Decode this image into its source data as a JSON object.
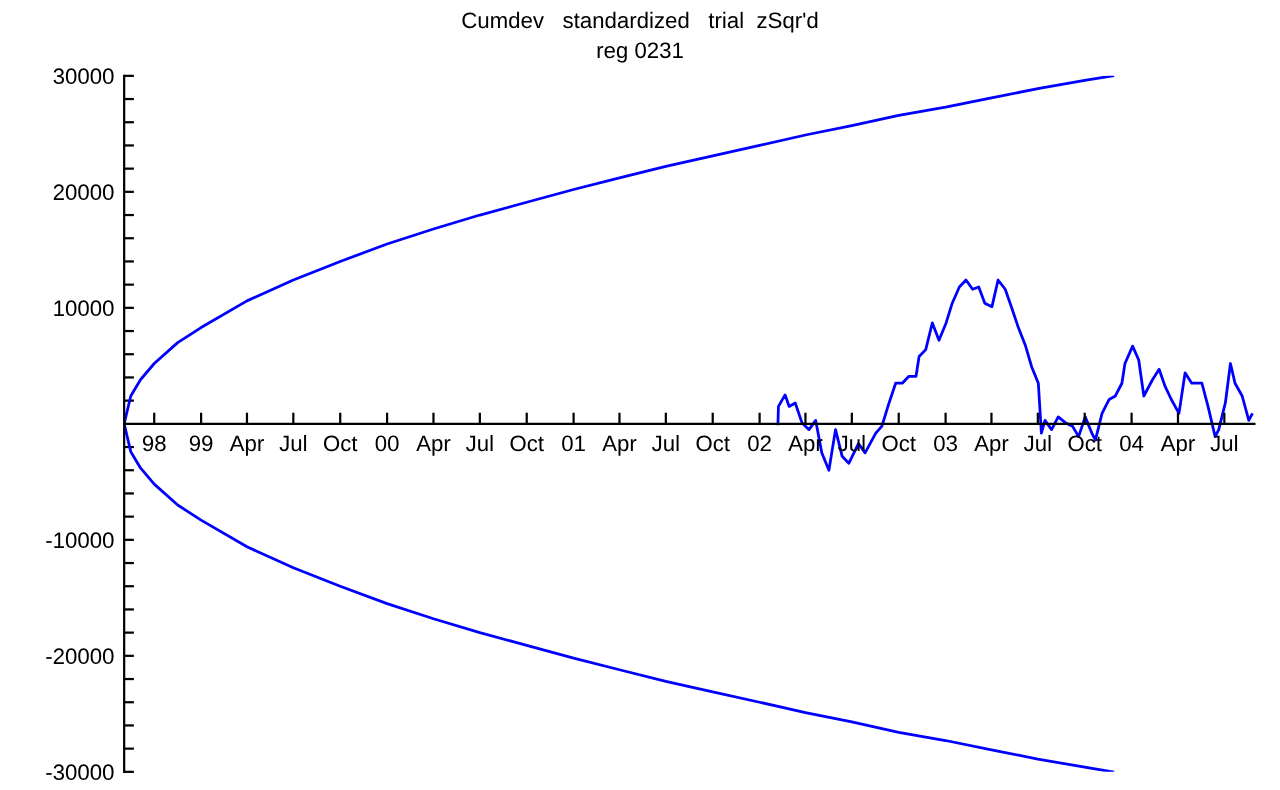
{
  "chart_data": {
    "type": "line",
    "title": "Cumdev   standardized   trial  zSqr'd",
    "subtitle": "reg 0231",
    "xlim": [
      "1998-08-03",
      "2004-08-29"
    ],
    "xticks": [
      {
        "value": "1998-10-01",
        "label": "98"
      },
      {
        "value": "1999-01-01",
        "label": "99"
      },
      {
        "value": "1999-04-01",
        "label": "Apr"
      },
      {
        "value": "1999-07-01",
        "label": "Jul"
      },
      {
        "value": "1999-10-01",
        "label": "Oct"
      },
      {
        "value": "2000-01-01",
        "label": "00"
      },
      {
        "value": "2000-04-01",
        "label": "Apr"
      },
      {
        "value": "2000-07-01",
        "label": "Jul"
      },
      {
        "value": "2000-10-01",
        "label": "Oct"
      },
      {
        "value": "2001-01-01",
        "label": "01"
      },
      {
        "value": "2001-04-01",
        "label": "Apr"
      },
      {
        "value": "2001-07-01",
        "label": "Jul"
      },
      {
        "value": "2001-10-01",
        "label": "Oct"
      },
      {
        "value": "2002-01-01",
        "label": "02"
      },
      {
        "value": "2002-04-01",
        "label": "Apr"
      },
      {
        "value": "2002-07-01",
        "label": "Jul"
      },
      {
        "value": "2002-10-01",
        "label": "Oct"
      },
      {
        "value": "2003-01-01",
        "label": "03"
      },
      {
        "value": "2003-04-01",
        "label": "Apr"
      },
      {
        "value": "2003-07-01",
        "label": "Jul"
      },
      {
        "value": "2003-10-01",
        "label": "Oct"
      },
      {
        "value": "2004-01-01",
        "label": "04"
      },
      {
        "value": "2004-04-01",
        "label": "Apr"
      },
      {
        "value": "2004-07-01",
        "label": "Jul"
      }
    ],
    "ylim": [
      -30000,
      30000
    ],
    "yticks": [
      -30000,
      {
        "value": -28000,
        "label": null
      },
      {
        "value": -26000,
        "label": null
      },
      {
        "value": -24000,
        "label": null
      },
      {
        "value": -22000,
        "label": null
      },
      -20000,
      {
        "value": -18000,
        "label": null
      },
      {
        "value": -16000,
        "label": null
      },
      {
        "value": -14000,
        "label": null
      },
      {
        "value": -12000,
        "label": null
      },
      -10000,
      {
        "value": -8000,
        "label": null
      },
      {
        "value": -6000,
        "label": null
      },
      {
        "value": -4000,
        "label": null
      },
      {
        "value": -2000,
        "label": null
      },
      {
        "value": 2000,
        "label": null
      },
      {
        "value": 4000,
        "label": null
      },
      {
        "value": 6000,
        "label": null
      },
      {
        "value": 8000,
        "label": null
      },
      10000,
      {
        "value": 12000,
        "label": null
      },
      {
        "value": 14000,
        "label": null
      },
      {
        "value": 16000,
        "label": null
      },
      {
        "value": 18000,
        "label": null
      },
      20000,
      {
        "value": 22000,
        "label": null
      },
      {
        "value": 24000,
        "label": null
      },
      {
        "value": 26000,
        "label": null
      },
      {
        "value": 28000,
        "label": null
      },
      30000
    ],
    "grid": false,
    "marker": "none",
    "line_style": "solid",
    "series": [
      {
        "color": "#0000ff",
        "x": [
          "1998-08-03",
          "1998-08-16",
          "1998-09-04",
          "1998-10-01",
          "1998-11-16",
          "1999-01-01",
          "1999-04-01",
          "1999-07-01",
          "1999-10-01",
          "2000-01-01",
          "2000-04-01",
          "2000-07-01",
          "2000-10-01",
          "2001-01-01",
          "2001-04-01",
          "2001-07-01",
          "2001-10-01",
          "2002-01-01",
          "2002-04-01",
          "2002-07-01",
          "2002-10-01",
          "2003-01-01",
          "2003-04-01",
          "2003-07-01",
          "2003-10-01",
          "2003-11-25"
        ],
        "values": [
          0,
          2400,
          3800,
          5200,
          7000,
          8300,
          10600,
          12400,
          14000,
          15500,
          16800,
          18000,
          19100,
          20200,
          21200,
          22200,
          23100,
          24000,
          24900,
          25700,
          26600,
          27300,
          28100,
          28900,
          29600,
          30000
        ]
      },
      {
        "color": "#0000ff",
        "x": [
          "1998-08-03",
          "1998-08-16",
          "1998-09-04",
          "1998-10-01",
          "1998-11-16",
          "1999-01-01",
          "1999-04-01",
          "1999-07-01",
          "1999-10-01",
          "2000-01-01",
          "2000-04-01",
          "2000-07-01",
          "2000-10-01",
          "2001-01-01",
          "2001-04-01",
          "2001-07-01",
          "2001-10-01",
          "2002-01-01",
          "2002-04-01",
          "2002-07-01",
          "2002-10-01",
          "2003-01-01",
          "2003-04-01",
          "2003-07-01",
          "2003-10-01",
          "2003-11-25"
        ],
        "values": [
          0,
          -2400,
          -3800,
          -5200,
          -7000,
          -8300,
          -10600,
          -12400,
          -14000,
          -15500,
          -16800,
          -18000,
          -19100,
          -20200,
          -21200,
          -22200,
          -23100,
          -24000,
          -24900,
          -25700,
          -26600,
          -27300,
          -28100,
          -28900,
          -29600,
          -30000
        ]
      },
      {
        "color": "#0000ff",
        "x": [
          "2002-02-06",
          "2002-02-07",
          "2002-02-20",
          "2002-02-28",
          "2002-03-12",
          "2002-03-25",
          "2002-04-08",
          "2002-04-21",
          "2002-05-03",
          "2002-05-17",
          "2002-05-30",
          "2002-06-12",
          "2002-06-25",
          "2002-07-14",
          "2002-07-27",
          "2002-08-17",
          "2002-08-29",
          "2002-09-12",
          "2002-09-25",
          "2002-10-08",
          "2002-10-21",
          "2002-11-04",
          "2002-11-10",
          "2002-11-23",
          "2002-12-06",
          "2002-12-19",
          "2003-01-02",
          "2003-01-14",
          "2003-01-28",
          "2003-02-10",
          "2003-02-23",
          "2003-03-07",
          "2003-03-19",
          "2003-04-02",
          "2003-04-14",
          "2003-04-28",
          "2003-05-10",
          "2003-05-23",
          "2003-06-07",
          "2003-06-19",
          "2003-07-02",
          "2003-07-08",
          "2003-07-15",
          "2003-07-28",
          "2003-08-10",
          "2003-08-24",
          "2003-09-07",
          "2003-09-19",
          "2003-10-02",
          "2003-10-15",
          "2003-10-22",
          "2003-11-04",
          "2003-11-18",
          "2003-11-30",
          "2003-12-13",
          "2003-12-19",
          "2004-01-03",
          "2004-01-15",
          "2004-01-25",
          "2004-02-11",
          "2004-02-24",
          "2004-03-07",
          "2004-03-19",
          "2004-04-03",
          "2004-04-15",
          "2004-04-28",
          "2004-05-18",
          "2004-05-30",
          "2004-06-13",
          "2004-06-20",
          "2004-07-03",
          "2004-07-13",
          "2004-07-22",
          "2004-08-05",
          "2004-08-18",
          "2004-08-24"
        ],
        "values": [
          0,
          1500,
          2500,
          1500,
          1800,
          100,
          -500,
          300,
          -2500,
          -4000,
          -500,
          -2800,
          -3400,
          -1700,
          -2500,
          -800,
          -200,
          1800,
          3500,
          3500,
          4100,
          4100,
          5800,
          6400,
          8700,
          7200,
          8700,
          10400,
          11800,
          12400,
          11600,
          11800,
          10400,
          10100,
          12400,
          11600,
          10100,
          8400,
          6700,
          4900,
          3500,
          -800,
          300,
          -500,
          600,
          100,
          -200,
          -1100,
          600,
          -800,
          -1400,
          900,
          2100,
          2400,
          3500,
          5200,
          6700,
          5500,
          2400,
          3800,
          4700,
          3200,
          2100,
          900,
          4400,
          3500,
          3500,
          1500,
          -1100,
          -500,
          1800,
          5200,
          3500,
          2400,
          300,
          800
        ]
      }
    ]
  }
}
